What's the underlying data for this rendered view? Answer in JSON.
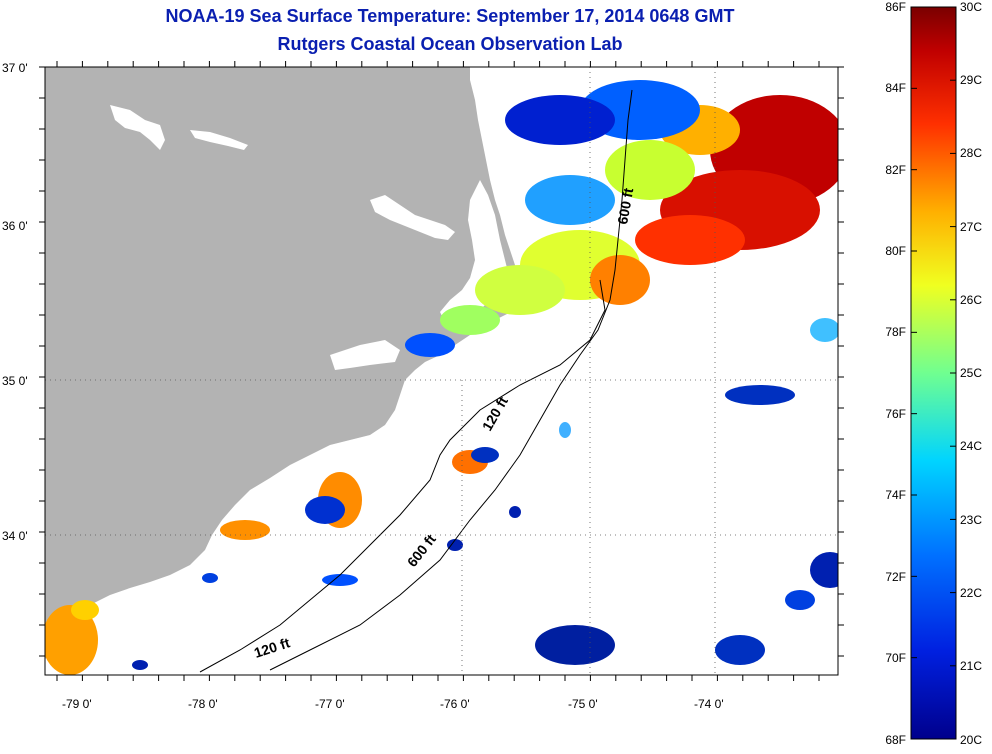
{
  "title": {
    "line1": "NOAA-19 Sea Surface Temperature:  September 17, 2014 0648 GMT",
    "line2": "Rutgers Coastal Ocean Observation Lab"
  },
  "map": {
    "lat_labels": [
      "37 0'",
      "36 0'",
      "35 0'",
      "34 0'"
    ],
    "lon_labels": [
      "-79 0'",
      "-78 0'",
      "-77 0'",
      "-76 0'",
      "-75 0'",
      "-74 0'"
    ],
    "lat_range": [
      33.2,
      37.0
    ],
    "lon_range": [
      -79.3,
      -73.1
    ],
    "contour_labels": [
      "600 ft",
      "120 ft",
      "600 ft",
      "120 ft"
    ]
  },
  "colorbar": {
    "f_labels": [
      "86F",
      "84F",
      "82F",
      "80F",
      "78F",
      "76F",
      "74F",
      "72F",
      "70F",
      "68F"
    ],
    "c_labels": [
      "30C",
      "29C",
      "28C",
      "27C",
      "26C",
      "25C",
      "24C",
      "23C",
      "22C",
      "21C",
      "20C"
    ],
    "colors": {
      "min": "#00008c",
      "low": "#0040ff",
      "midlow": "#00d4ff",
      "mid": "#f0ff20",
      "midhigh": "#ff8c00",
      "high": "#d80000",
      "max": "#7a0000"
    }
  },
  "colors": {
    "land": "#b3b3b3",
    "ocean": "#ffffff",
    "title": "#0a1fb0"
  }
}
